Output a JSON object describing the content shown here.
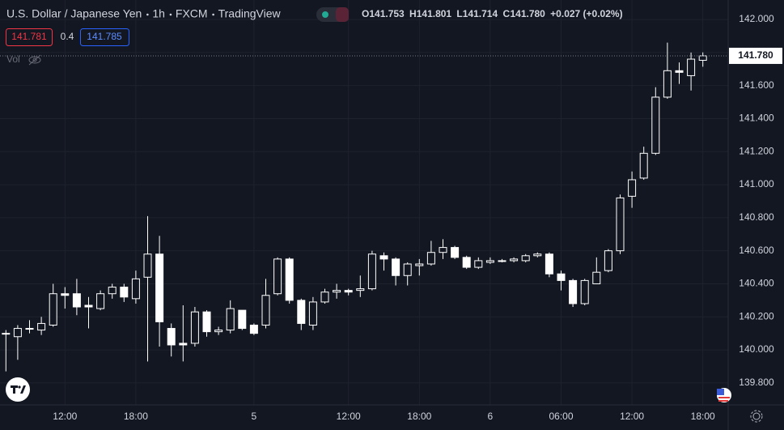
{
  "chart_data": {
    "type": "candlestick",
    "title": "U.S. Dollar / Japanese Yen",
    "interval": "1h",
    "exchange": "FXCM",
    "publisher": "TradingView",
    "ohlc_legend": {
      "labels": [
        "O",
        "H",
        "L",
        "C"
      ],
      "values": [
        141.753,
        141.801,
        141.714,
        141.78
      ],
      "value_labels": [
        "141.753",
        "141.801",
        "141.714",
        "141.780"
      ],
      "change": "+0.027 (+0.02%)"
    },
    "sell_price": "141.781",
    "spread": "0.4",
    "buy_price": "141.785",
    "volume_label": "Vol",
    "categories": [
      null,
      null,
      null,
      null,
      null,
      "12:00",
      null,
      null,
      null,
      null,
      null,
      "18:00",
      null,
      null,
      null,
      null,
      null,
      null,
      null,
      null,
      null,
      "5",
      null,
      null,
      null,
      null,
      null,
      null,
      null,
      "12:00",
      null,
      null,
      null,
      null,
      null,
      "18:00",
      null,
      null,
      null,
      null,
      null,
      "6",
      null,
      null,
      null,
      null,
      null,
      "06:00",
      null,
      null,
      null,
      null,
      null,
      "12:00",
      null,
      null,
      null,
      null,
      null,
      "18:00"
    ],
    "series": {
      "open": [
        140.1,
        140.08,
        140.13,
        140.12,
        140.15,
        140.34,
        140.34,
        140.27,
        140.25,
        140.34,
        140.38,
        140.31,
        140.44,
        140.58,
        140.13,
        140.04,
        140.04,
        140.23,
        140.11,
        140.12,
        140.24,
        140.15,
        140.15,
        140.34,
        140.55,
        140.3,
        140.15,
        140.29,
        140.35,
        140.36,
        140.36,
        140.37,
        140.57,
        140.55,
        140.45,
        140.51,
        140.52,
        140.59,
        140.62,
        140.56,
        140.5,
        140.53,
        140.54,
        140.54,
        140.54,
        140.57,
        140.58,
        140.46,
        140.42,
        140.28,
        140.4,
        140.48,
        140.6,
        140.93,
        141.04,
        141.19,
        141.53,
        141.69,
        141.66,
        141.753
      ],
      "high": [
        140.12,
        140.15,
        140.18,
        140.2,
        140.4,
        140.38,
        140.43,
        140.32,
        140.36,
        140.4,
        140.4,
        140.48,
        140.81,
        140.69,
        140.16,
        140.27,
        140.26,
        140.24,
        140.14,
        140.3,
        140.24,
        140.16,
        140.43,
        140.56,
        140.56,
        140.31,
        140.32,
        140.37,
        140.4,
        140.37,
        140.45,
        140.6,
        140.59,
        140.56,
        140.53,
        140.55,
        140.66,
        140.67,
        140.63,
        140.57,
        140.56,
        140.56,
        140.55,
        140.56,
        140.58,
        140.59,
        140.59,
        140.48,
        140.43,
        140.43,
        140.56,
        140.61,
        140.94,
        141.08,
        141.23,
        141.59,
        141.86,
        141.74,
        141.8,
        141.801
      ],
      "low": [
        139.87,
        139.94,
        140.1,
        140.09,
        140.14,
        140.25,
        140.21,
        140.13,
        140.24,
        140.31,
        140.29,
        140.28,
        139.93,
        140.02,
        139.96,
        139.93,
        140.02,
        140.08,
        140.09,
        140.1,
        140.12,
        140.09,
        140.13,
        140.33,
        140.28,
        140.12,
        140.12,
        140.28,
        140.31,
        140.33,
        140.32,
        140.36,
        140.48,
        140.39,
        140.39,
        140.45,
        140.51,
        140.55,
        140.55,
        140.49,
        140.49,
        140.52,
        140.53,
        140.53,
        140.53,
        140.56,
        140.44,
        140.36,
        140.26,
        140.27,
        140.4,
        140.47,
        140.58,
        140.86,
        141.03,
        141.18,
        141.52,
        141.61,
        141.57,
        141.714
      ],
      "close": [
        140.1,
        140.13,
        140.13,
        140.16,
        140.34,
        140.33,
        140.26,
        140.26,
        140.34,
        140.38,
        140.32,
        140.43,
        140.58,
        140.17,
        140.03,
        140.03,
        140.23,
        140.11,
        140.12,
        140.25,
        140.13,
        140.1,
        140.33,
        140.55,
        140.3,
        140.16,
        140.29,
        140.35,
        140.36,
        140.35,
        140.37,
        140.58,
        140.55,
        140.45,
        140.52,
        140.52,
        140.59,
        140.62,
        140.56,
        140.5,
        140.54,
        140.54,
        140.54,
        140.55,
        140.57,
        140.58,
        140.46,
        140.42,
        140.28,
        140.42,
        140.47,
        140.6,
        140.92,
        141.03,
        141.19,
        141.53,
        141.69,
        141.68,
        141.76,
        141.78
      ]
    },
    "up_color": "#ffffff",
    "down_color": "#ffffff",
    "hollow_up": true,
    "grid": true,
    "ylim": [
      139.667,
      142.118
    ],
    "yticks": [
      {
        "value": 139.8,
        "label": "139.800"
      },
      {
        "value": 140,
        "label": "140.000"
      },
      {
        "value": 140.2,
        "label": "140.200"
      },
      {
        "value": 140.4,
        "label": "140.400"
      },
      {
        "value": 140.6,
        "label": "140.600"
      },
      {
        "value": 140.8,
        "label": "140.800"
      },
      {
        "value": 141,
        "label": "141.000"
      },
      {
        "value": 141.2,
        "label": "141.200"
      },
      {
        "value": 141.4,
        "label": "141.400"
      },
      {
        "value": 141.6,
        "label": "141.600"
      },
      {
        "value": 141.8,
        "label": "141.800"
      },
      {
        "value": 142,
        "label": "142.000"
      }
    ],
    "last_price": {
      "value": 141.78,
      "label": "141.780"
    }
  }
}
